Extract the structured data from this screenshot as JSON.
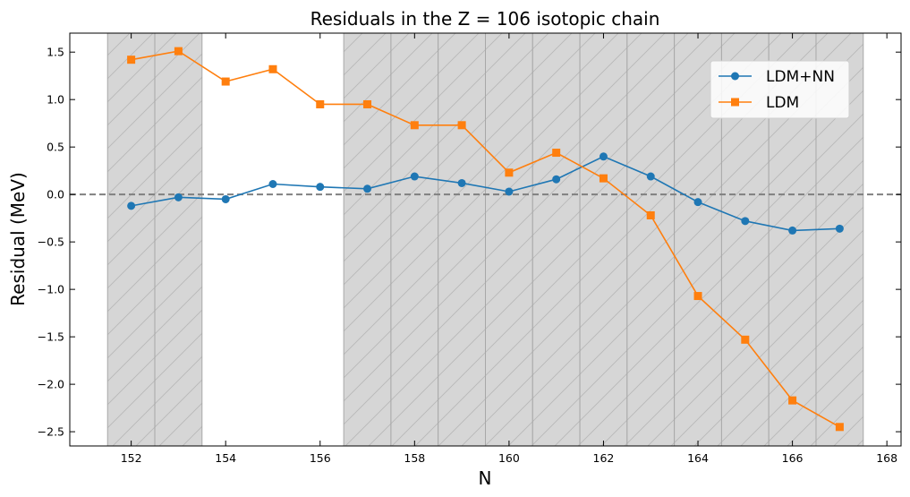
{
  "chart_data": {
    "type": "line",
    "title": "Residuals in the Z = 106 isotopic chain",
    "xlabel": "N",
    "ylabel": "Residual (MeV)",
    "xlim": [
      150.7,
      168.3
    ],
    "ylim": [
      -2.65,
      1.7
    ],
    "xticks": [
      152,
      154,
      156,
      158,
      160,
      162,
      164,
      166,
      168
    ],
    "yticks": [
      -2.5,
      -2.0,
      -1.5,
      -1.0,
      -0.5,
      0.0,
      0.5,
      1.0,
      1.5
    ],
    "xtick_labels": [
      "152",
      "154",
      "156",
      "158",
      "160",
      "162",
      "164",
      "166",
      "168"
    ],
    "ytick_labels": [
      "−2.5",
      "−2.0",
      "−1.5",
      "−1.0",
      "−0.5",
      "0.0",
      "0.5",
      "1.0",
      "1.5"
    ],
    "x": [
      152,
      153,
      154,
      155,
      156,
      157,
      158,
      159,
      160,
      161,
      162,
      163,
      164,
      165,
      166,
      167
    ],
    "series": [
      {
        "name": "LDM+NN",
        "color": "#1f77b4",
        "marker": "circle",
        "values": [
          -0.12,
          -0.03,
          -0.05,
          0.11,
          0.08,
          0.06,
          0.19,
          0.12,
          0.03,
          0.16,
          0.4,
          0.19,
          -0.08,
          -0.28,
          -0.38,
          -0.36
        ]
      },
      {
        "name": "LDM",
        "color": "#ff7f0e",
        "marker": "square",
        "values": [
          1.42,
          1.51,
          1.19,
          1.32,
          0.95,
          0.95,
          0.73,
          0.73,
          0.23,
          0.44,
          0.17,
          -0.22,
          -1.07,
          -1.53,
          -2.17,
          -2.45
        ]
      }
    ],
    "reference_line": {
      "y": 0.0,
      "style": "dashed",
      "color": "#808080"
    },
    "shaded_regions": [
      [
        151.5,
        152.5
      ],
      [
        152.5,
        153.5
      ],
      [
        156.5,
        157.5
      ],
      [
        157.5,
        158.5
      ],
      [
        158.5,
        159.5
      ],
      [
        159.5,
        160.5
      ],
      [
        160.5,
        161.5
      ],
      [
        161.5,
        162.5
      ],
      [
        162.5,
        163.5
      ],
      [
        163.5,
        164.5
      ],
      [
        164.5,
        165.5
      ],
      [
        165.5,
        166.5
      ],
      [
        166.5,
        167.5
      ]
    ],
    "shade_color": "#d6d6d6",
    "hatch": "diagonal",
    "legend_position": "top-right",
    "grid": false
  }
}
